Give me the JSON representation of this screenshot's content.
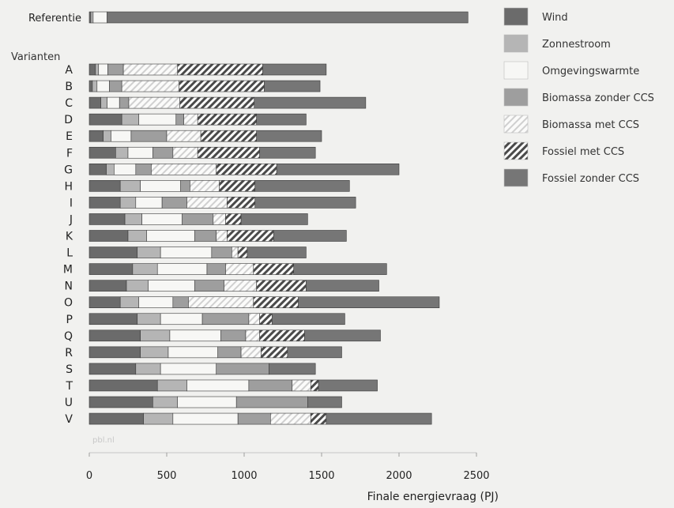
{
  "chart_data": {
    "type": "bar",
    "orientation": "horizontal",
    "stacked": true,
    "xlabel": "Finale energievraag (PJ)",
    "ylabel": "",
    "xlim": [
      0,
      2500
    ],
    "xticks": [
      0,
      500,
      1000,
      1500,
      2000,
      2500
    ],
    "group_label": "Varianten",
    "watermark": "pbl.nl",
    "grid": false,
    "legend_position": "right",
    "categories": [
      "Referentie",
      "A",
      "B",
      "C",
      "D",
      "E",
      "F",
      "G",
      "H",
      "I",
      "J",
      "K",
      "L",
      "M",
      "N",
      "O",
      "P",
      "Q",
      "R",
      "S",
      "T",
      "U",
      "V"
    ],
    "series": [
      {
        "name": "Wind",
        "color": "#6b6b6b",
        "pattern": "solid",
        "values": [
          10,
          40,
          20,
          75,
          210,
          90,
          170,
          110,
          200,
          200,
          230,
          250,
          310,
          280,
          240,
          200,
          310,
          330,
          330,
          300,
          440,
          410,
          350
        ]
      },
      {
        "name": "Zonnestroom",
        "color": "#b5b5b5",
        "pattern": "solid",
        "values": [
          15,
          20,
          30,
          40,
          110,
          50,
          80,
          50,
          130,
          100,
          110,
          120,
          150,
          160,
          140,
          120,
          150,
          190,
          180,
          160,
          190,
          160,
          190
        ]
      },
      {
        "name": "Omgevingswarmte",
        "color": "#f7f7f5",
        "pattern": "solid",
        "values": [
          90,
          60,
          80,
          80,
          240,
          130,
          160,
          140,
          260,
          170,
          260,
          310,
          330,
          320,
          300,
          220,
          270,
          330,
          320,
          360,
          400,
          380,
          420
        ]
      },
      {
        "name": "Biomassa zonder CCS",
        "color": "#9e9e9e",
        "pattern": "solid",
        "values": [
          0,
          100,
          80,
          60,
          50,
          230,
          130,
          100,
          60,
          160,
          200,
          140,
          130,
          120,
          190,
          100,
          300,
          160,
          150,
          340,
          280,
          460,
          210
        ]
      },
      {
        "name": "Biomassa met CCS",
        "color": "#d0d0d0",
        "pattern": "hatch",
        "values": [
          0,
          350,
          370,
          330,
          90,
          220,
          160,
          420,
          190,
          260,
          80,
          70,
          40,
          180,
          210,
          420,
          70,
          90,
          130,
          0,
          120,
          0,
          260
        ]
      },
      {
        "name": "Fossiel met CCS",
        "color": "#4a4a4a",
        "pattern": "hatch",
        "values": [
          0,
          550,
          550,
          480,
          380,
          360,
          400,
          390,
          230,
          180,
          100,
          300,
          60,
          260,
          320,
          290,
          80,
          290,
          170,
          0,
          50,
          0,
          100
        ]
      },
      {
        "name": "Fossiel zonder CCS",
        "color": "#767676",
        "pattern": "solid",
        "values": [
          2330,
          410,
          360,
          720,
          320,
          420,
          360,
          790,
          610,
          650,
          430,
          470,
          380,
          600,
          470,
          910,
          470,
          490,
          350,
          300,
          380,
          220,
          680
        ]
      }
    ]
  }
}
